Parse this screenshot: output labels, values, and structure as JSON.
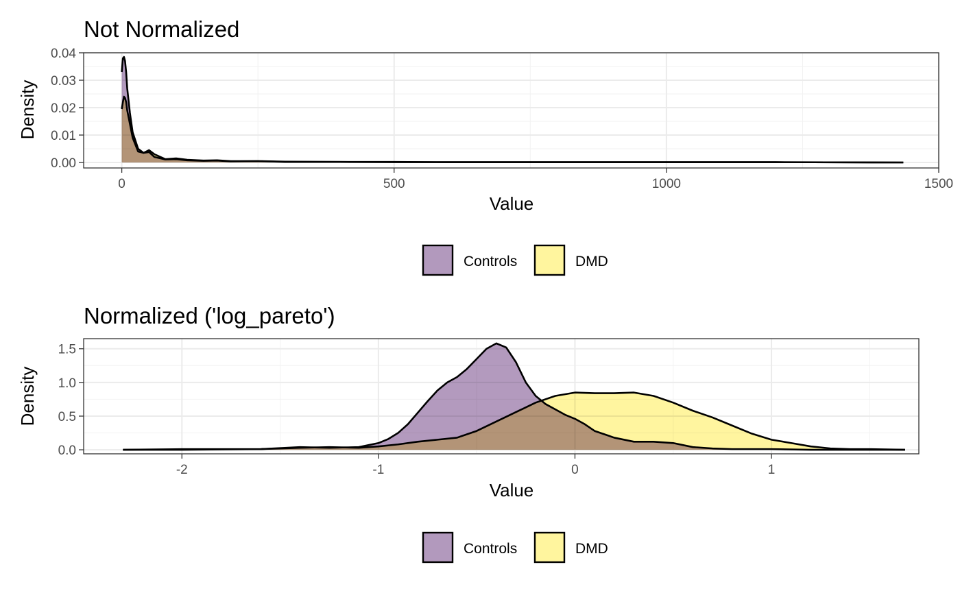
{
  "chart_data": [
    {
      "type": "area",
      "title": "Not Normalized",
      "xlabel": "Value",
      "ylabel": "Density",
      "xlim": [
        -70,
        1500
      ],
      "ylim": [
        -0.002,
        0.04
      ],
      "x_ticks": [
        0,
        500,
        1000,
        1500
      ],
      "x_tick_labels": [
        "0",
        "500",
        "1000",
        "1500"
      ],
      "y_ticks": [
        0,
        0.01,
        0.02,
        0.03,
        0.04
      ],
      "y_tick_labels": [
        "0.00",
        "0.01",
        "0.02",
        "0.03",
        "0.04"
      ],
      "grid": true,
      "legend_position": "bottom",
      "series": [
        {
          "name": "Controls",
          "color": "#b299bd",
          "x": [
            0,
            2,
            4,
            6,
            8,
            10,
            15,
            20,
            30,
            40,
            50,
            60,
            80,
            100,
            120,
            150,
            175,
            200,
            250,
            300,
            400,
            500,
            600,
            800,
            1000,
            1200,
            1435
          ],
          "y": [
            0.033,
            0.038,
            0.0385,
            0.037,
            0.033,
            0.027,
            0.018,
            0.011,
            0.005,
            0.0035,
            0.0038,
            0.002,
            0.0011,
            0.0012,
            0.0008,
            0.0006,
            0.0007,
            0.0004,
            0.0005,
            0.0002,
            0.0002,
            0.0001,
            0.0001,
            0.0001,
            0.0001,
            0.0001,
            0.0
          ]
        },
        {
          "name": "DMD",
          "color": "#fff59e",
          "x": [
            0,
            2,
            4,
            6,
            8,
            10,
            15,
            20,
            30,
            40,
            50,
            60,
            80,
            100,
            120,
            150,
            175,
            200,
            250,
            300,
            400,
            500,
            600,
            800,
            1000,
            1200,
            1435
          ],
          "y": [
            0.0195,
            0.022,
            0.024,
            0.0235,
            0.022,
            0.019,
            0.014,
            0.009,
            0.004,
            0.0035,
            0.0045,
            0.003,
            0.0012,
            0.0015,
            0.001,
            0.0007,
            0.0008,
            0.0005,
            0.0005,
            0.0003,
            0.0002,
            0.0002,
            0.0001,
            0.0001,
            0.0001,
            0.0001,
            0.0
          ]
        }
      ]
    },
    {
      "type": "area",
      "title": "Normalized ('log_pareto')",
      "xlabel": "Value",
      "ylabel": "Density",
      "xlim": [
        -2.5,
        1.75
      ],
      "ylim": [
        -0.06,
        1.65
      ],
      "x_ticks": [
        -2,
        -1,
        0,
        1
      ],
      "x_tick_labels": [
        "-2",
        "-1",
        "0",
        "1"
      ],
      "y_ticks": [
        0,
        0.5,
        1.0,
        1.5
      ],
      "y_tick_labels": [
        "0.0",
        "0.5",
        "1.0",
        "1.5"
      ],
      "grid": true,
      "legend_position": "bottom",
      "series": [
        {
          "name": "Controls",
          "color": "#b299bd",
          "x": [
            -2.3,
            -2.0,
            -1.6,
            -1.4,
            -1.25,
            -1.1,
            -1.0,
            -0.95,
            -0.9,
            -0.85,
            -0.8,
            -0.75,
            -0.7,
            -0.65,
            -0.6,
            -0.55,
            -0.5,
            -0.45,
            -0.4,
            -0.35,
            -0.3,
            -0.25,
            -0.2,
            -0.15,
            -0.1,
            -0.05,
            0.0,
            0.05,
            0.1,
            0.2,
            0.3,
            0.4,
            0.5,
            0.6,
            0.7,
            0.8,
            1.0,
            1.2,
            1.4,
            1.68
          ],
          "y": [
            0.0,
            0.0,
            0.01,
            0.04,
            0.03,
            0.04,
            0.1,
            0.16,
            0.25,
            0.38,
            0.55,
            0.72,
            0.88,
            1.0,
            1.08,
            1.2,
            1.35,
            1.5,
            1.58,
            1.52,
            1.3,
            1.0,
            0.8,
            0.68,
            0.6,
            0.52,
            0.46,
            0.38,
            0.28,
            0.18,
            0.12,
            0.12,
            0.1,
            0.04,
            0.02,
            0.01,
            0.01,
            0.0,
            0.0,
            0.0
          ]
        },
        {
          "name": "DMD",
          "color": "#fff59e",
          "x": [
            -2.3,
            -2.0,
            -1.6,
            -1.4,
            -1.25,
            -1.1,
            -1.0,
            -0.9,
            -0.8,
            -0.7,
            -0.6,
            -0.5,
            -0.4,
            -0.3,
            -0.2,
            -0.1,
            0.0,
            0.1,
            0.2,
            0.3,
            0.4,
            0.5,
            0.6,
            0.7,
            0.8,
            0.9,
            1.0,
            1.1,
            1.2,
            1.3,
            1.4,
            1.5,
            1.68
          ],
          "y": [
            0.0,
            0.01,
            0.01,
            0.03,
            0.04,
            0.03,
            0.05,
            0.08,
            0.12,
            0.15,
            0.18,
            0.28,
            0.42,
            0.56,
            0.7,
            0.8,
            0.85,
            0.84,
            0.84,
            0.85,
            0.8,
            0.7,
            0.58,
            0.48,
            0.36,
            0.24,
            0.15,
            0.1,
            0.05,
            0.02,
            0.01,
            0.01,
            0.0
          ]
        }
      ]
    }
  ]
}
